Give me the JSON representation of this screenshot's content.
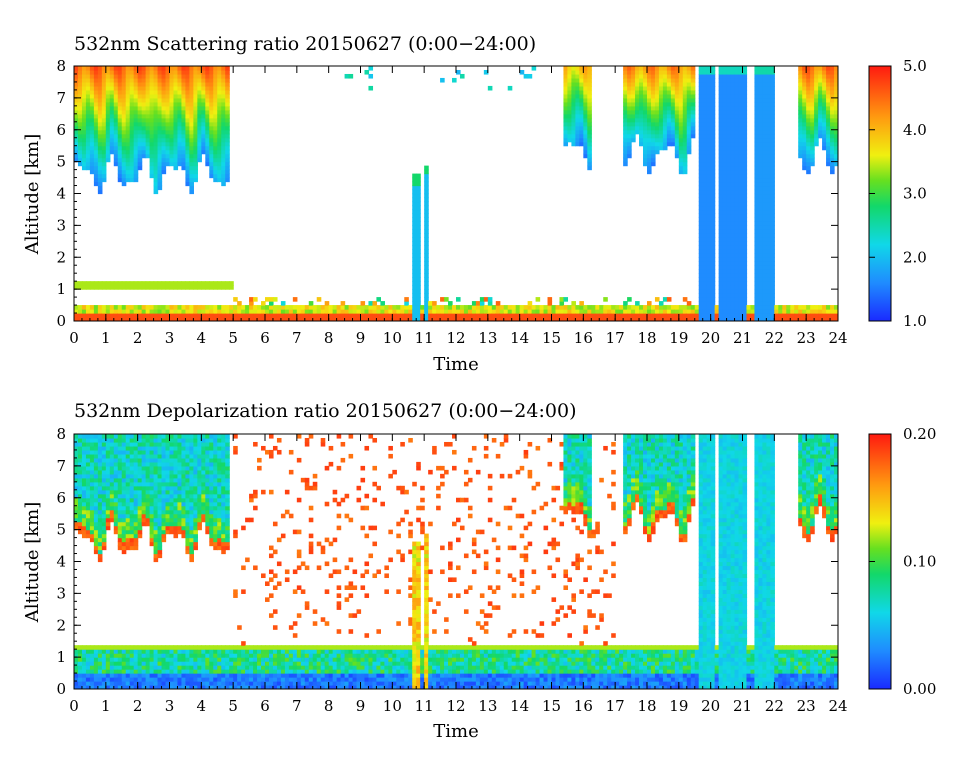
{
  "chart_data": [
    {
      "type": "heatmap",
      "title": "532nm Scattering ratio  20150627 (0:00−24:00)",
      "xlabel": "Time",
      "ylabel": "Altitude [km]",
      "xlim": [
        0,
        24
      ],
      "ylim": [
        0,
        8
      ],
      "x_ticks": [
        "0",
        "1",
        "2",
        "3",
        "4",
        "5",
        "6",
        "7",
        "8",
        "9",
        "10",
        "11",
        "12",
        "13",
        "14",
        "15",
        "16",
        "17",
        "18",
        "19",
        "20",
        "21",
        "22",
        "23",
        "24"
      ],
      "y_ticks": [
        "0",
        "1",
        "2",
        "3",
        "4",
        "5",
        "6",
        "7",
        "8"
      ],
      "colorbar": {
        "min": 1.0,
        "max": 5.0,
        "ticks": [
          "1.0",
          "2.0",
          "3.0",
          "4.0",
          "5.0"
        ]
      },
      "features": {
        "cirrus_segments": [
          {
            "from": 0.0,
            "to": 4.9,
            "top": 8.0,
            "base": 4.6,
            "value": 4.3
          },
          {
            "from": 15.4,
            "to": 16.3,
            "top": 8.0,
            "base": 5.3,
            "value": 3.6
          },
          {
            "from": 17.2,
            "to": 19.5,
            "top": 8.0,
            "base": 5.2,
            "value": 4.0
          },
          {
            "from": 22.8,
            "to": 24.0,
            "top": 8.0,
            "base": 5.1,
            "value": 4.2
          }
        ],
        "boundary_layer_top_km": 1.2,
        "rain_columns": [
          {
            "center": 10.75,
            "top": 4.6,
            "value": 2.0
          },
          {
            "center": 11.05,
            "top": 4.9,
            "value": 2.0
          },
          {
            "center": 19.9,
            "top": 8.0,
            "value": 1.6
          },
          {
            "center": 20.5,
            "top": 8.0,
            "value": 1.6
          },
          {
            "center": 20.9,
            "top": 8.0,
            "value": 1.6
          },
          {
            "center": 21.7,
            "top": 8.0,
            "value": 1.7
          }
        ]
      }
    },
    {
      "type": "heatmap",
      "title": "532nm Depolarization ratio  20150627 (0:00−24:00)",
      "xlabel": "Time",
      "ylabel": "Altitude [km]",
      "xlim": [
        0,
        24
      ],
      "ylim": [
        0,
        8
      ],
      "x_ticks": [
        "0",
        "1",
        "2",
        "3",
        "4",
        "5",
        "6",
        "7",
        "8",
        "9",
        "10",
        "11",
        "12",
        "13",
        "14",
        "15",
        "16",
        "17",
        "18",
        "19",
        "20",
        "21",
        "22",
        "23",
        "24"
      ],
      "y_ticks": [
        "0",
        "1",
        "2",
        "3",
        "4",
        "5",
        "6",
        "7",
        "8"
      ],
      "colorbar": {
        "min": 0.0,
        "max": 0.2,
        "ticks": [
          "0.00",
          "0.10",
          "0.20"
        ]
      },
      "features": {
        "cirrus_value": 0.05,
        "cirrus_base_value": 0.17,
        "boundary_layer_value": 0.02,
        "noise_value": 0.18
      }
    }
  ]
}
